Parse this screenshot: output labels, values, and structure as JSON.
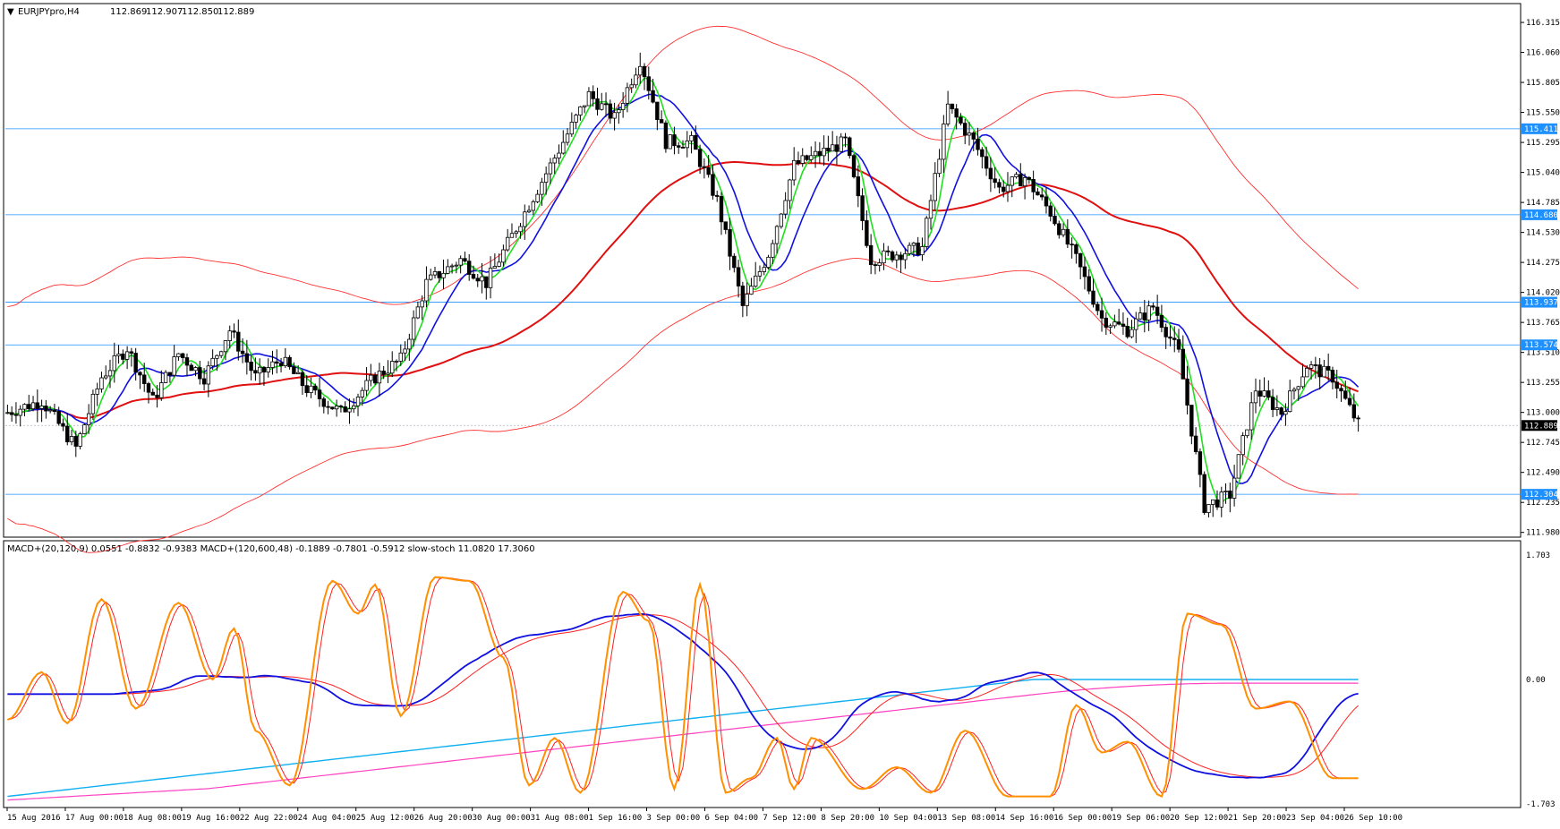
{
  "symbol_label": "EURJPYpro,H4",
  "ohlc": {
    "open": "112.869",
    "high": "112.907",
    "low": "112.850",
    "close": "112.889"
  },
  "indicator_label": "MACD+(20,120,9) 0.0551 -0.8832 -0.9383  MACD+(120,600,48) -0.1889 -0.7801 -0.5912  slow-stoch 11.0820 17.3060",
  "chart_data": {
    "type": "candlestick",
    "y_axis": {
      "ticks": [
        116.315,
        116.06,
        115.805,
        115.55,
        115.295,
        115.04,
        114.785,
        114.53,
        114.275,
        114.02,
        113.765,
        113.51,
        113.255,
        113.0,
        112.745,
        112.49,
        112.235,
        111.98
      ],
      "tick_labels": [
        "116.315",
        "116.060",
        "115.805",
        "115.550",
        "115.295",
        "115.040",
        "114.785",
        "114.530",
        "114.275",
        "114.020",
        "113.765",
        "113.510",
        "113.255",
        "113.000",
        "112.745",
        "112.490",
        "112.235",
        "111.980"
      ],
      "range": [
        111.955,
        116.46
      ]
    },
    "level_lines": [
      {
        "value": 115.411,
        "label": "115.411"
      },
      {
        "value": 114.68,
        "label": "114.680"
      },
      {
        "value": 113.937,
        "label": "113.937"
      },
      {
        "value": 113.574,
        "label": "113.574"
      },
      {
        "value": 112.304,
        "label": "112.304"
      }
    ],
    "current_price": {
      "value": 112.889,
      "label": "112.889"
    },
    "x_labels": [
      "15 Aug 2016",
      "17 Aug 00:00",
      "18 Aug 08:00",
      "19 Aug 16:00",
      "22 Aug 22:00",
      "24 Aug 04:00",
      "25 Aug 12:00",
      "26 Aug 20:00",
      "30 Aug 00:00",
      "31 Aug 08:00",
      "1 Sep 16:00",
      "3 Sep 00:00",
      "6 Sep 04:00",
      "7 Sep 12:00",
      "8 Sep 20:00",
      "10 Sep 04:00",
      "13 Sep 08:00",
      "14 Sep 16:00",
      "16 Sep 00:00",
      "19 Sep 06:00",
      "20 Sep 12:00",
      "21 Sep 20:00",
      "23 Sep 04:00",
      "26 Sep 10:00"
    ],
    "price_anchors": [
      [
        0,
        113.0
      ],
      [
        8,
        113.1
      ],
      [
        16,
        112.7
      ],
      [
        22,
        113.3
      ],
      [
        28,
        113.55
      ],
      [
        34,
        113.1
      ],
      [
        40,
        113.5
      ],
      [
        46,
        113.3
      ],
      [
        52,
        113.7
      ],
      [
        58,
        113.3
      ],
      [
        64,
        113.45
      ],
      [
        70,
        113.2
      ],
      [
        78,
        113.0
      ],
      [
        86,
        113.3
      ],
      [
        92,
        113.45
      ],
      [
        98,
        114.1
      ],
      [
        106,
        114.3
      ],
      [
        112,
        114.1
      ],
      [
        118,
        114.5
      ],
      [
        124,
        114.9
      ],
      [
        130,
        115.3
      ],
      [
        136,
        115.7
      ],
      [
        142,
        115.5
      ],
      [
        148,
        116.0
      ],
      [
        154,
        115.3
      ],
      [
        160,
        115.3
      ],
      [
        166,
        114.8
      ],
      [
        172,
        113.9
      ],
      [
        178,
        114.35
      ],
      [
        184,
        115.1
      ],
      [
        190,
        115.2
      ],
      [
        196,
        115.3
      ],
      [
        202,
        114.3
      ],
      [
        208,
        114.35
      ],
      [
        214,
        114.4
      ],
      [
        220,
        115.6
      ],
      [
        226,
        115.3
      ],
      [
        232,
        114.9
      ],
      [
        238,
        115.0
      ],
      [
        244,
        114.7
      ],
      [
        250,
        114.3
      ],
      [
        256,
        113.8
      ],
      [
        262,
        113.7
      ],
      [
        268,
        113.9
      ],
      [
        274,
        113.5
      ],
      [
        280,
        112.2
      ],
      [
        286,
        112.3
      ],
      [
        292,
        113.2
      ],
      [
        298,
        113.0
      ],
      [
        304,
        113.4
      ],
      [
        310,
        113.3
      ],
      [
        316,
        112.9
      ]
    ],
    "pane2": {
      "range": [
        -1.703,
        1.703
      ],
      "ticks": [
        1.703,
        0.0,
        -1.703
      ],
      "tick_labels": [
        "1.703",
        "0.00",
        "-1.703"
      ],
      "stoch_peaks": [
        [
          0,
          -0.55
        ],
        [
          8,
          0.1
        ],
        [
          14,
          -0.6
        ],
        [
          22,
          1.1
        ],
        [
          30,
          -0.4
        ],
        [
          40,
          1.05
        ],
        [
          48,
          0.0
        ],
        [
          53,
          0.7
        ],
        [
          58,
          -0.7
        ],
        [
          66,
          -1.45
        ],
        [
          76,
          1.35
        ],
        [
          82,
          0.9
        ],
        [
          86,
          1.3
        ],
        [
          92,
          -0.5
        ],
        [
          100,
          1.4
        ],
        [
          108,
          1.35
        ],
        [
          116,
          0.3
        ],
        [
          122,
          -1.45
        ],
        [
          128,
          -0.8
        ],
        [
          134,
          -1.55
        ],
        [
          144,
          1.2
        ],
        [
          150,
          0.8
        ],
        [
          156,
          -1.5
        ],
        [
          162,
          1.3
        ],
        [
          168,
          -1.55
        ],
        [
          174,
          -1.35
        ],
        [
          180,
          -0.8
        ],
        [
          184,
          -1.5
        ],
        [
          188,
          -0.8
        ],
        [
          200,
          -1.5
        ],
        [
          208,
          -1.2
        ],
        [
          216,
          -1.55
        ],
        [
          224,
          -0.7
        ],
        [
          234,
          -1.6
        ],
        [
          244,
          -1.6
        ],
        [
          250,
          -0.35
        ],
        [
          256,
          -1.0
        ],
        [
          262,
          -0.85
        ],
        [
          270,
          -1.6
        ],
        [
          276,
          0.9
        ],
        [
          284,
          0.75
        ],
        [
          292,
          -0.4
        ],
        [
          300,
          -0.3
        ],
        [
          310,
          -1.35
        ]
      ]
    }
  }
}
